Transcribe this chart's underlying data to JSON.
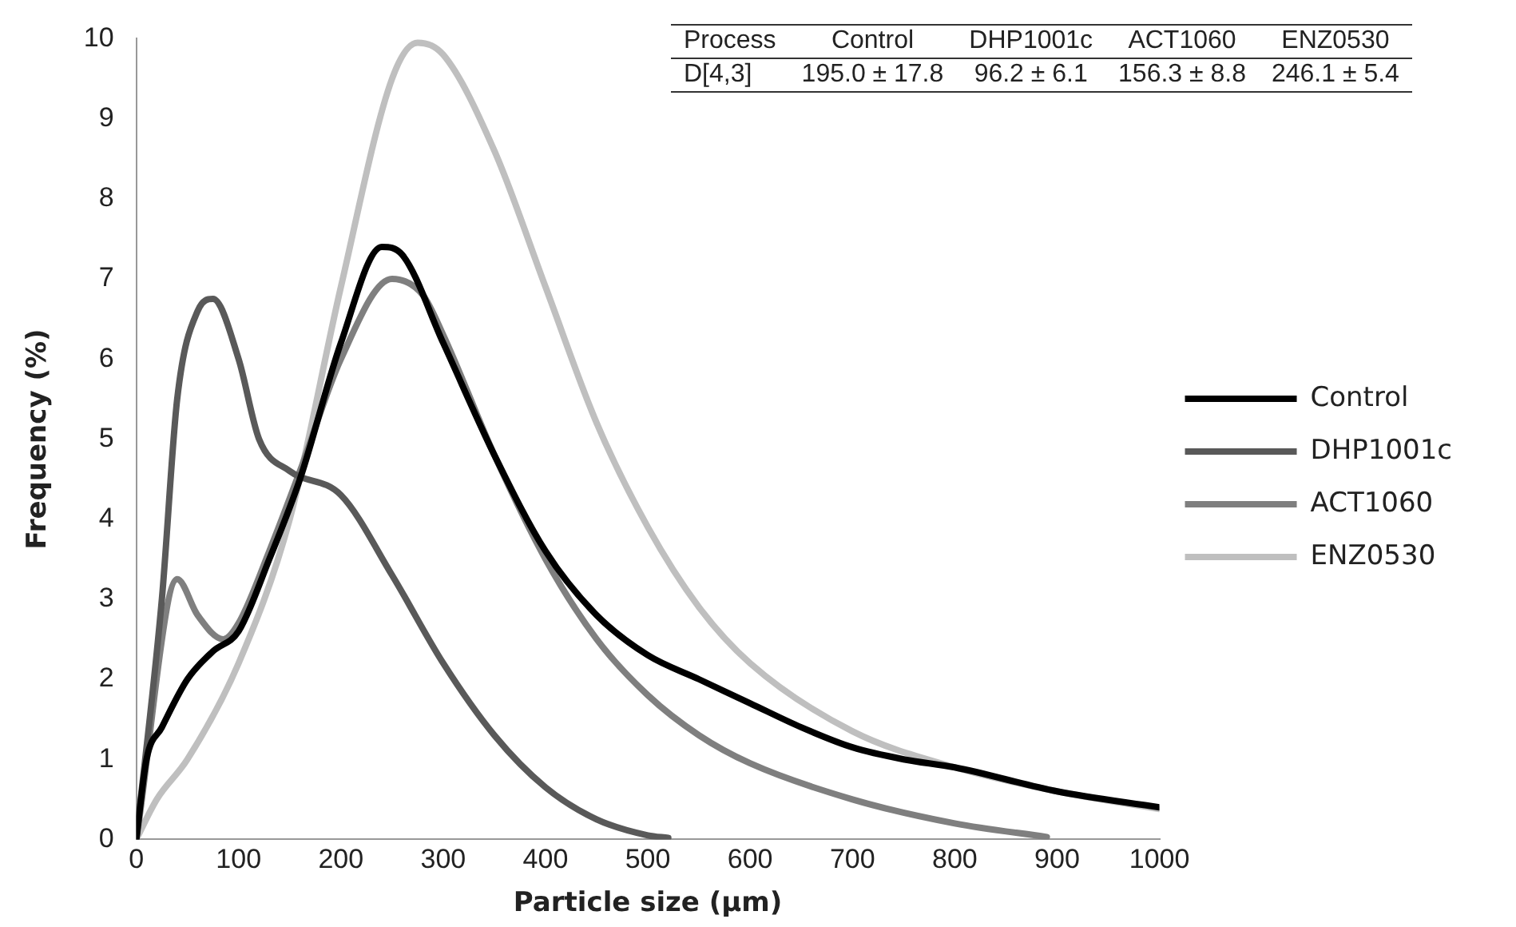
{
  "chart_data": {
    "type": "line",
    "xlabel": "Particle size (µm)",
    "ylabel": "Frequency (%)",
    "xlim": [
      0,
      1000
    ],
    "xticks": [
      0,
      100,
      200,
      300,
      400,
      500,
      600,
      700,
      800,
      900,
      1000
    ],
    "ylim": [
      0,
      10
    ],
    "yticks": [
      0,
      1,
      2,
      3,
      4,
      5,
      6,
      7,
      8,
      9,
      10
    ],
    "grid": false,
    "legend": "right",
    "marker": "none",
    "line_style": "solid",
    "annotations": [
      "Process",
      "Control",
      "DHP1001c",
      "ACT1060",
      "ENZ0530",
      "D[4,3]",
      "195.0 ± 17.8",
      "96.2 ± 6.1",
      "156.3 ± 8.8",
      "246.1 ± 5.4"
    ],
    "series": [
      {
        "name": "Control",
        "color": "#000000",
        "x": [
          0,
          10,
          25,
          50,
          75,
          100,
          130,
          160,
          200,
          240,
          260,
          300,
          350,
          400,
          450,
          500,
          550,
          600,
          650,
          700,
          750,
          800,
          900,
          1000
        ],
        "values": [
          0,
          1,
          1.4,
          2,
          2.35,
          2.6,
          3.5,
          4.5,
          6.2,
          7.4,
          7.3,
          6.2,
          4.8,
          3.6,
          2.8,
          2.3,
          2,
          1.7,
          1.4,
          1.15,
          1,
          0.9,
          0.6,
          0.4
        ]
      },
      {
        "name": "DHP1001c",
        "color": "#595959",
        "x": [
          0,
          25,
          40,
          60,
          75,
          100,
          120,
          150,
          200,
          250,
          300,
          350,
          400,
          450,
          500,
          520
        ],
        "values": [
          0,
          3,
          5.5,
          6.6,
          6.75,
          6,
          5,
          4.6,
          4.3,
          3.3,
          2.2,
          1.3,
          0.65,
          0.25,
          0.05,
          0.02
        ]
      },
      {
        "name": "ACT1060",
        "color": "#7f7f7f",
        "x": [
          0,
          40,
          60,
          85,
          100,
          130,
          160,
          200,
          250,
          280,
          300,
          350,
          400,
          450,
          500,
          550,
          600,
          700,
          800,
          890
        ],
        "values": [
          0,
          3.25,
          2.8,
          2.5,
          2.7,
          3.6,
          4.6,
          6,
          7,
          6.8,
          6.3,
          4.8,
          3.5,
          2.5,
          1.8,
          1.3,
          0.95,
          0.5,
          0.2,
          0.03
        ]
      },
      {
        "name": "ENZ0530",
        "color": "#bfbfbf",
        "x": [
          0,
          20,
          50,
          100,
          150,
          200,
          250,
          275,
          300,
          350,
          400,
          450,
          500,
          550,
          600,
          700,
          800,
          900,
          1000
        ],
        "values": [
          0,
          0.5,
          1,
          2.2,
          4,
          6.9,
          9.5,
          9.95,
          9.8,
          8.6,
          6.9,
          5.2,
          3.9,
          2.9,
          2.2,
          1.35,
          0.9,
          0.6,
          0.38
        ]
      }
    ]
  }
}
